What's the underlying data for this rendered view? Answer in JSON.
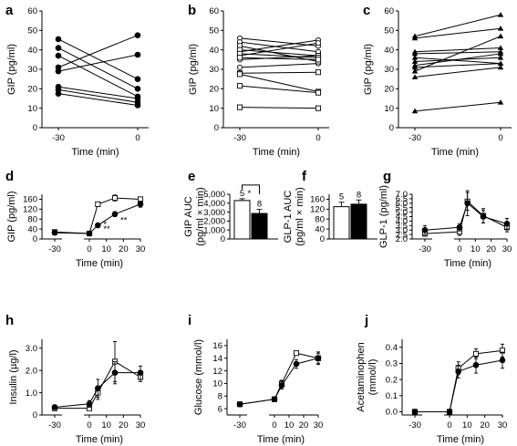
{
  "chart_data": [
    {
      "id": "a",
      "type": "line",
      "panel_label": "a",
      "ylabel": "GIP (pg/ml)",
      "xlabel": "Time (min)",
      "x": [
        -30,
        0
      ],
      "xticks": [
        "-30",
        "0"
      ],
      "ylim": [
        0,
        60
      ],
      "yticks": [
        0,
        10,
        20,
        30,
        40,
        50,
        60
      ],
      "marker": "filled-circle",
      "series": [
        {
          "values": [
            45.5,
            25
          ]
        },
        {
          "values": [
            41,
            20
          ]
        },
        {
          "values": [
            37,
            16
          ]
        },
        {
          "values": [
            31,
            47.5
          ]
        },
        {
          "values": [
            29,
            37.5
          ]
        },
        {
          "values": [
            21,
            15
          ]
        },
        {
          "values": [
            19.5,
            13
          ]
        },
        {
          "values": [
            17.5,
            11.5
          ]
        }
      ]
    },
    {
      "id": "b",
      "type": "line",
      "panel_label": "b",
      "ylabel": "GIP (pg/ml)",
      "xlabel": "Time (min)",
      "x": [
        -30,
        0
      ],
      "xticks": [
        "-30",
        "0"
      ],
      "ylim": [
        0,
        60
      ],
      "yticks": [
        0,
        10,
        20,
        30,
        40,
        50,
        60
      ],
      "series": [
        {
          "marker": "open-circle",
          "values": [
            46,
            42
          ]
        },
        {
          "marker": "open-circle",
          "values": [
            44,
            39
          ]
        },
        {
          "marker": "open-circle",
          "values": [
            39,
            45
          ]
        },
        {
          "marker": "open-circle",
          "values": [
            37,
            43.5
          ]
        },
        {
          "marker": "open-circle",
          "values": [
            35,
            37
          ]
        },
        {
          "marker": "open-circle",
          "values": [
            31,
            33
          ]
        },
        {
          "marker": "open-square",
          "values": [
            42,
            34
          ]
        },
        {
          "marker": "open-square",
          "values": [
            40,
            37
          ]
        },
        {
          "marker": "open-square",
          "values": [
            38,
            36
          ]
        },
        {
          "marker": "open-square",
          "values": [
            36,
            35
          ]
        },
        {
          "marker": "open-square",
          "values": [
            28,
            28.5
          ]
        },
        {
          "marker": "open-square",
          "values": [
            27.5,
            18.5
          ]
        },
        {
          "marker": "open-square",
          "values": [
            21.5,
            18
          ]
        },
        {
          "marker": "open-square",
          "values": [
            10.5,
            10
          ]
        }
      ]
    },
    {
      "id": "c",
      "type": "line",
      "panel_label": "c",
      "ylabel": "GIP (pg/ml)",
      "xlabel": "Time (min)",
      "x": [
        -30,
        0
      ],
      "xticks": [
        "-30",
        "0"
      ],
      "ylim": [
        0,
        60
      ],
      "yticks": [
        0,
        10,
        20,
        30,
        40,
        50,
        60
      ],
      "marker": "filled-triangle",
      "series": [
        {
          "values": [
            47,
            58
          ]
        },
        {
          "values": [
            46,
            51
          ]
        },
        {
          "values": [
            39,
            41
          ]
        },
        {
          "values": [
            38,
            39
          ]
        },
        {
          "values": [
            36,
            33
          ]
        },
        {
          "values": [
            34,
            36
          ]
        },
        {
          "values": [
            32,
            38
          ]
        },
        {
          "values": [
            31,
            33
          ]
        },
        {
          "values": [
            29,
            47
          ]
        },
        {
          "values": [
            26,
            31
          ]
        },
        {
          "values": [
            8.5,
            13
          ]
        }
      ]
    },
    {
      "id": "d",
      "type": "line",
      "panel_label": "d",
      "ylabel": "GIP (pg/ml)",
      "xlabel": "Time (min)",
      "x": [
        -30,
        0,
        5,
        15,
        30
      ],
      "xticks": [
        "-30",
        "0",
        "10",
        "20",
        "30"
      ],
      "ylim": [
        0,
        180
      ],
      "yticks": [
        0,
        40,
        80,
        120,
        160
      ],
      "annotations": [
        {
          "text": "*",
          "x": 5,
          "y": 58
        },
        {
          "text": "**",
          "x": 5,
          "y": 40
        },
        {
          "text": "**",
          "x": 15,
          "y": 75
        }
      ],
      "series": [
        {
          "marker": "open-square",
          "values": [
            28,
            22,
            140,
            165,
            160
          ],
          "err": [
            3,
            2,
            8,
            12,
            8
          ]
        },
        {
          "marker": "filled-circle",
          "values": [
            25,
            22,
            55,
            100,
            140
          ],
          "err": [
            3,
            2,
            6,
            10,
            12
          ]
        }
      ]
    },
    {
      "id": "e",
      "type": "bar",
      "panel_label": "e",
      "ylabel": "GIP AUC",
      "ylabel2": "(pg/ml × min)",
      "ylim": [
        0,
        5000
      ],
      "yticks": [
        0,
        1000,
        2000,
        3000,
        4000,
        5000
      ],
      "ytick_labels": [
        "0",
        "1,000",
        "2,000",
        "3,000",
        "4,000",
        "5,000"
      ],
      "categories": [
        "open",
        "filled"
      ],
      "bars": [
        {
          "fill": "open",
          "value": 4300,
          "err": 200,
          "n": "5"
        },
        {
          "fill": "filled",
          "value": 2850,
          "err": 450,
          "n": "8"
        }
      ],
      "significance": "*"
    },
    {
      "id": "f",
      "type": "bar",
      "panel_label": "f",
      "ylabel": "GLP-1 AUC",
      "ylabel2": "(pg/ml × min)",
      "ylim": [
        0,
        180
      ],
      "yticks": [
        0,
        40,
        80,
        120,
        160
      ],
      "categories": [
        "open",
        "filled"
      ],
      "bars": [
        {
          "fill": "open",
          "value": 130,
          "err": 18,
          "n": "5"
        },
        {
          "fill": "filled",
          "value": 140,
          "err": 17,
          "n": "8"
        }
      ]
    },
    {
      "id": "g",
      "type": "line",
      "panel_label": "g",
      "ylabel": "GLP-1 (pg/ml)",
      "xlabel": "Time (min)",
      "x": [
        -30,
        0,
        5,
        15,
        30
      ],
      "xticks": [
        "-30",
        "0",
        "10",
        "20",
        "30"
      ],
      "ylim": [
        2.0,
        7.0
      ],
      "yticks": [
        2.0,
        2.5,
        3.0,
        3.5,
        4.0,
        4.5,
        5.0,
        5.5,
        6.0,
        6.5,
        7.0
      ],
      "ytick_labels": [
        "2.0",
        "2.5",
        "3.0",
        "3.5",
        "4.0",
        "4.5",
        "5.0",
        "5.5",
        "6.0",
        "6.5",
        "7.0"
      ],
      "series": [
        {
          "marker": "open-square",
          "values": [
            2.6,
            2.8,
            6.2,
            4.6,
            3.3
          ],
          "err": [
            0.3,
            0.4,
            1.0,
            0.8,
            0.5
          ]
        },
        {
          "marker": "filled-circle",
          "values": [
            3.0,
            3.3,
            6.0,
            4.5,
            3.7
          ],
          "err": [
            0.5,
            0.4,
            1.4,
            0.7,
            0.6
          ]
        }
      ]
    },
    {
      "id": "h",
      "type": "line",
      "panel_label": "h",
      "ylabel": "Insulin (µg/l)",
      "xlabel": "Time (min)",
      "x": [
        -30,
        0,
        5,
        15,
        30
      ],
      "xticks": [
        "-30",
        "0",
        "10",
        "20",
        "30"
      ],
      "ylim": [
        0,
        3.4
      ],
      "yticks": [
        0,
        1.0,
        2.0,
        3.0
      ],
      "ytick_labels": [
        "0",
        "1.0",
        "2.0",
        "3.0"
      ],
      "series": [
        {
          "marker": "open-square",
          "values": [
            0.3,
            0.3,
            1.0,
            2.4,
            1.7
          ],
          "err": [
            0.05,
            0.08,
            0.3,
            0.9,
            0.2
          ]
        },
        {
          "marker": "filled-circle",
          "values": [
            0.35,
            0.5,
            1.2,
            1.9,
            1.9
          ],
          "err": [
            0.05,
            0.15,
            0.4,
            0.5,
            0.3
          ]
        }
      ]
    },
    {
      "id": "i",
      "type": "line",
      "panel_label": "i",
      "ylabel": "Glucose (mmol/l)",
      "xlabel": "Time (min)",
      "x": [
        -30,
        0,
        5,
        15,
        30
      ],
      "xticks": [
        "-30",
        "0",
        "10",
        "20",
        "30"
      ],
      "ylim": [
        5,
        17
      ],
      "yticks": [
        6,
        8,
        10,
        12,
        14,
        16
      ],
      "series": [
        {
          "marker": "open-square",
          "values": [
            6.7,
            7.5,
            10.0,
            14.8,
            14.0
          ],
          "err": [
            0.2,
            0.2,
            0.5,
            0.3,
            0.8
          ]
        },
        {
          "marker": "filled-circle",
          "values": [
            6.7,
            7.5,
            9.7,
            13.1,
            14.0
          ],
          "err": [
            0.2,
            0.2,
            0.6,
            0.7,
            1.0
          ]
        }
      ]
    },
    {
      "id": "j",
      "type": "line",
      "panel_label": "j",
      "ylabel": "Acetaminophen",
      "ylabel2": "(mmol/l)",
      "xlabel": "Time (min)",
      "x": [
        -30,
        0,
        5,
        15,
        30
      ],
      "xticks": [
        "-30",
        "0",
        "10",
        "20",
        "30"
      ],
      "ylim": [
        -0.02,
        0.45
      ],
      "yticks": [
        0,
        0.1,
        0.2,
        0.3,
        0.4
      ],
      "ytick_labels": [
        "0.0",
        "0.1",
        "0.2",
        "0.3",
        "0.4"
      ],
      "series": [
        {
          "marker": "open-square",
          "values": [
            0.0,
            0.0,
            0.27,
            0.36,
            0.38
          ],
          "err": [
            0.005,
            0.005,
            0.04,
            0.03,
            0.04
          ]
        },
        {
          "marker": "filled-circle",
          "values": [
            0.0,
            0.0,
            0.25,
            0.29,
            0.32
          ],
          "err": [
            0.005,
            0.005,
            0.04,
            0.05,
            0.05
          ]
        }
      ]
    }
  ]
}
